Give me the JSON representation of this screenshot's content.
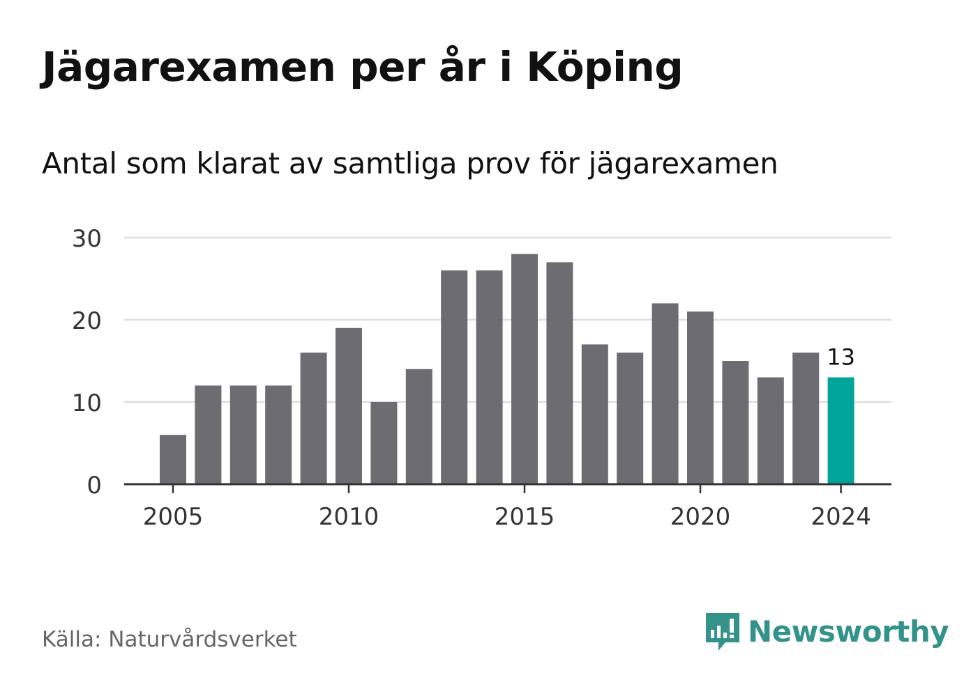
{
  "title": "Jägarexamen per år i Köping",
  "subtitle": "Antal som klarat av samtliga prov för jägarexamen",
  "source": "Källa: Naturvårdsverket",
  "brand": {
    "name": "Newsworthy",
    "icon": "newsworthy-logo-icon",
    "color": "#33928a"
  },
  "colors": {
    "bar": "#6d6c72",
    "highlight": "#00a49a",
    "grid": "#dddddd",
    "axis": "#333333"
  },
  "chart_data": {
    "type": "bar",
    "x": [
      2005,
      2006,
      2007,
      2008,
      2009,
      2010,
      2011,
      2012,
      2013,
      2014,
      2015,
      2016,
      2017,
      2018,
      2019,
      2020,
      2021,
      2022,
      2023,
      2024
    ],
    "values": [
      6,
      12,
      12,
      12,
      16,
      19,
      10,
      14,
      26,
      26,
      28,
      27,
      17,
      16,
      22,
      21,
      15,
      13,
      16,
      13
    ],
    "ylim": [
      0,
      30
    ],
    "yticks": [
      "0",
      "10",
      "20",
      "30"
    ],
    "xticks": [
      "2005",
      "2010",
      "2015",
      "2020",
      "2024"
    ],
    "highlight_index": 19,
    "highlight_label": "13",
    "grid": true
  }
}
